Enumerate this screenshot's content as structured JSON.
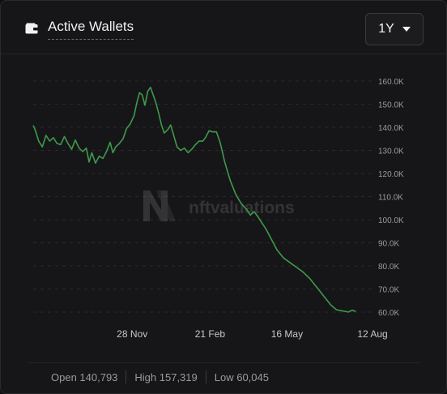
{
  "header": {
    "title": "Active Wallets",
    "range_label": "1Y"
  },
  "watermark": "nftvaluations",
  "stats": {
    "open": "Open 140,793",
    "high": "High 157,319",
    "low": "Low 60,045"
  },
  "colors": {
    "line": "#3f9a4c",
    "background": "#161618",
    "grid": "#2a2a2e",
    "axis_text": "#9a9aa0"
  },
  "chart_data": {
    "type": "line",
    "title": "Active Wallets",
    "xlabel": "",
    "ylabel": "",
    "x_ticks": [
      "28 Nov",
      "21 Feb",
      "16 May",
      "12 Aug"
    ],
    "y_ticks": [
      "60.0K",
      "70.0K",
      "80.0K",
      "90.0K",
      "100.0K",
      "110.0K",
      "120.0K",
      "130.0K",
      "140.0K",
      "150.0K",
      "160.0K"
    ],
    "ylim": [
      60000,
      160000
    ],
    "x_domain": [
      "2022-08-12",
      "2023-08-12"
    ],
    "grid": true,
    "grid_style": "horizontal dashed",
    "series": [
      {
        "values": [
          [
            "2022-08-12",
            140800
          ],
          [
            "2022-08-14",
            139000
          ],
          [
            "2022-08-18",
            134000
          ],
          [
            "2022-08-22",
            131500
          ],
          [
            "2022-08-26",
            136500
          ],
          [
            "2022-08-30",
            134000
          ],
          [
            "2022-09-03",
            135500
          ],
          [
            "2022-09-07",
            133000
          ],
          [
            "2022-09-11",
            132500
          ],
          [
            "2022-09-15",
            136000
          ],
          [
            "2022-09-19",
            133000
          ],
          [
            "2022-09-23",
            130500
          ],
          [
            "2022-09-27",
            134500
          ],
          [
            "2022-10-01",
            131000
          ],
          [
            "2022-10-05",
            129500
          ],
          [
            "2022-10-09",
            131000
          ],
          [
            "2022-10-12",
            125000
          ],
          [
            "2022-10-15",
            129000
          ],
          [
            "2022-10-19",
            124500
          ],
          [
            "2022-10-23",
            127500
          ],
          [
            "2022-10-27",
            126500
          ],
          [
            "2022-10-31",
            129500
          ],
          [
            "2022-11-04",
            133500
          ],
          [
            "2022-11-07",
            129000
          ],
          [
            "2022-11-10",
            131500
          ],
          [
            "2022-11-14",
            133000
          ],
          [
            "2022-11-18",
            135000
          ],
          [
            "2022-11-22",
            139500
          ],
          [
            "2022-11-26",
            141500
          ],
          [
            "2022-11-30",
            145000
          ],
          [
            "2022-12-03",
            150500
          ],
          [
            "2022-12-06",
            155000
          ],
          [
            "2022-12-09",
            154000
          ],
          [
            "2022-12-12",
            149500
          ],
          [
            "2022-12-15",
            155500
          ],
          [
            "2022-12-18",
            157300
          ],
          [
            "2022-12-21",
            154000
          ],
          [
            "2022-12-24",
            150500
          ],
          [
            "2022-12-27",
            146000
          ],
          [
            "2022-12-30",
            141000
          ],
          [
            "2023-01-02",
            137500
          ],
          [
            "2023-01-06",
            139000
          ],
          [
            "2023-01-09",
            141000
          ],
          [
            "2023-01-12",
            137000
          ],
          [
            "2023-01-16",
            131500
          ],
          [
            "2023-01-20",
            130000
          ],
          [
            "2023-01-24",
            131000
          ],
          [
            "2023-01-28",
            129000
          ],
          [
            "2023-02-01",
            130500
          ],
          [
            "2023-02-05",
            132500
          ],
          [
            "2023-02-09",
            134000
          ],
          [
            "2023-02-13",
            134000
          ],
          [
            "2023-02-16",
            135500
          ],
          [
            "2023-02-20",
            138500
          ],
          [
            "2023-02-24",
            138000
          ],
          [
            "2023-02-28",
            138000
          ],
          [
            "2023-03-04",
            133500
          ],
          [
            "2023-03-09",
            125000
          ],
          [
            "2023-03-15",
            117000
          ],
          [
            "2023-03-21",
            111000
          ],
          [
            "2023-03-27",
            107000
          ],
          [
            "2023-04-02",
            104500
          ],
          [
            "2023-04-06",
            102000
          ],
          [
            "2023-04-10",
            103500
          ],
          [
            "2023-04-14",
            101500
          ],
          [
            "2023-04-18",
            99000
          ],
          [
            "2023-04-23",
            96000
          ],
          [
            "2023-04-29",
            91500
          ],
          [
            "2023-05-05",
            87000
          ],
          [
            "2023-05-12",
            83500
          ],
          [
            "2023-05-19",
            81500
          ],
          [
            "2023-05-26",
            79500
          ],
          [
            "2023-06-02",
            77500
          ],
          [
            "2023-06-10",
            74500
          ],
          [
            "2023-06-18",
            70500
          ],
          [
            "2023-06-26",
            66500
          ],
          [
            "2023-07-03",
            63000
          ],
          [
            "2023-07-09",
            61000
          ],
          [
            "2023-07-16",
            60500
          ],
          [
            "2023-07-22",
            60045
          ],
          [
            "2023-07-26",
            60800
          ],
          [
            "2023-07-30",
            60300
          ]
        ]
      }
    ]
  }
}
